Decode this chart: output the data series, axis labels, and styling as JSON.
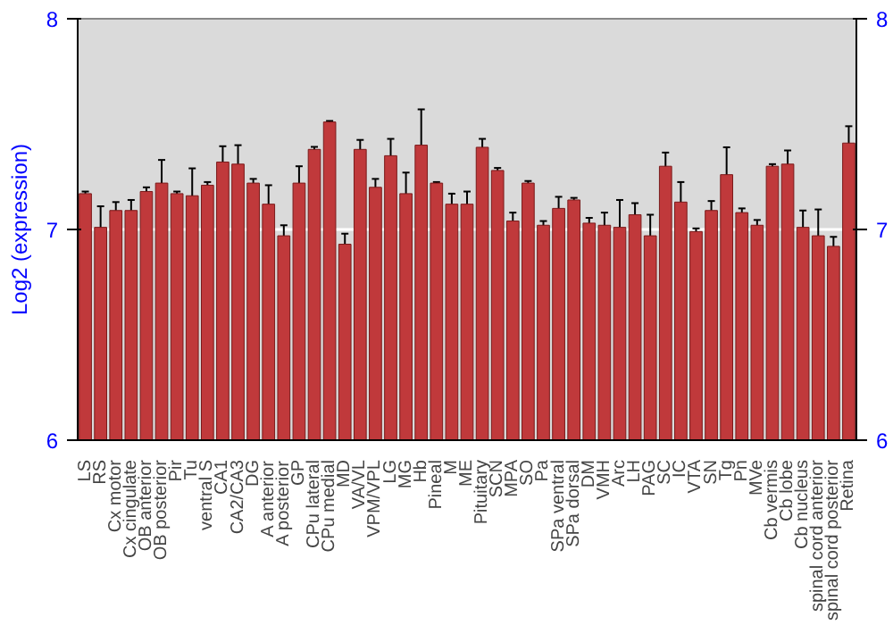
{
  "chart_data": {
    "type": "bar",
    "ylabel": "Log2 (expression)",
    "categories": [
      "LS",
      "RS",
      "Cx motor",
      "Cx cingulate",
      "OB anterior",
      "OB posterior",
      "Pir",
      "Tu",
      "ventral S",
      "CA1",
      "CA2/CA3",
      "DG",
      "A anterior",
      "A posterior",
      "GP",
      "CPu lateral",
      "CPu medial",
      "MD",
      "VA/VL",
      "VPM/VPL",
      "LG",
      "MG",
      "Hb",
      "Pineal",
      "M",
      "ME",
      "Pituitary",
      "SCN",
      "MPA",
      "SO",
      "Pa",
      "SPa ventral",
      "SPa dorsal",
      "DM",
      "VMH",
      "Arc",
      "LH",
      "PAG",
      "SC",
      "IC",
      "VTA",
      "SN",
      "Tg",
      "Pn",
      "MVe",
      "Cb vermis",
      "Cb lobe",
      "Cb nucleus",
      "spinal cord anterior",
      "spinal cord posterior",
      "Retina"
    ],
    "values": [
      7.17,
      7.01,
      7.09,
      7.09,
      7.18,
      7.22,
      7.17,
      7.16,
      7.21,
      7.32,
      7.31,
      7.22,
      7.12,
      6.97,
      7.22,
      7.38,
      7.51,
      6.93,
      7.38,
      7.2,
      7.35,
      7.17,
      7.4,
      7.22,
      7.12,
      7.12,
      7.39,
      7.28,
      7.04,
      7.22,
      7.02,
      7.1,
      7.14,
      7.03,
      7.02,
      7.01,
      7.07,
      6.97,
      7.3,
      7.13,
      6.99,
      7.09,
      7.26,
      7.08,
      7.02,
      7.3,
      7.31,
      7.01,
      6.97,
      6.92,
      7.41
    ],
    "errors": [
      0.01,
      0.1,
      0.04,
      0.05,
      0.02,
      0.11,
      0.01,
      0.13,
      0.015,
      0.075,
      0.09,
      0.02,
      0.09,
      0.05,
      0.08,
      0.012,
      0.005,
      0.05,
      0.045,
      0.04,
      0.08,
      0.1,
      0.17,
      0.005,
      0.05,
      0.06,
      0.04,
      0.012,
      0.04,
      0.01,
      0.02,
      0.055,
      0.01,
      0.025,
      0.06,
      0.13,
      0.055,
      0.1,
      0.065,
      0.095,
      0.015,
      0.045,
      0.13,
      0.02,
      0.025,
      0.01,
      0.065,
      0.08,
      0.125,
      0.045,
      0.08
    ],
    "color": "#c0393b",
    "ylim": [
      6,
      8
    ],
    "yticks": [
      6,
      7,
      8
    ],
    "y2lim": [
      6,
      8
    ],
    "y2ticks": [
      6,
      7,
      8
    ],
    "grid": "y"
  }
}
